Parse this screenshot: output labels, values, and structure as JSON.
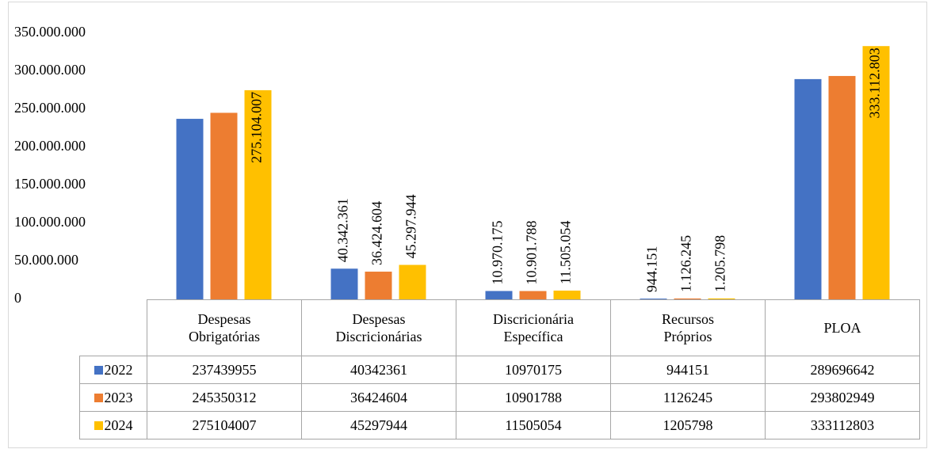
{
  "chart_data": {
    "type": "bar",
    "categories": [
      "Despesas\nObrigatórias",
      "Despesas\nDiscricionárias",
      "Discricionária\nEspecífica",
      "Recursos\nPróprios",
      "PLOA"
    ],
    "series": [
      {
        "name": "2022",
        "color": "#4472c4",
        "values": [
          237439955,
          40342361,
          10970175,
          944151,
          289696642
        ],
        "value_labels": [
          null,
          "40.342.361",
          "10.970.175",
          "944.151",
          null
        ]
      },
      {
        "name": "2023",
        "color": "#ed7d31",
        "values": [
          245350312,
          36424604,
          10901788,
          1126245,
          293802949
        ],
        "value_labels": [
          null,
          "36.424.604",
          "10.901.788",
          "1.126.245",
          null
        ]
      },
      {
        "name": "2024",
        "color": "#ffc000",
        "values": [
          275104007,
          45297944,
          11505054,
          1205798,
          333112803
        ],
        "value_labels": [
          "275.104.007",
          "45.297.944",
          "11.505.054",
          "1.205.798",
          "333.112.803"
        ]
      }
    ],
    "ylim": [
      0,
      350000000
    ],
    "yticks": [
      0,
      {
        "value": 50000000,
        "label": "50.000.000"
      },
      {
        "value": 100000000,
        "label": "100.000.000"
      },
      {
        "value": 150000000,
        "label": "150.000.000"
      },
      {
        "value": 200000000,
        "label": "200.000.000"
      },
      {
        "value": 250000000,
        "label": "250.000.000"
      },
      {
        "value": 300000000,
        "label": "300.000.000"
      },
      {
        "value": 350000000,
        "label": "350.000.000"
      }
    ],
    "grid": false
  }
}
